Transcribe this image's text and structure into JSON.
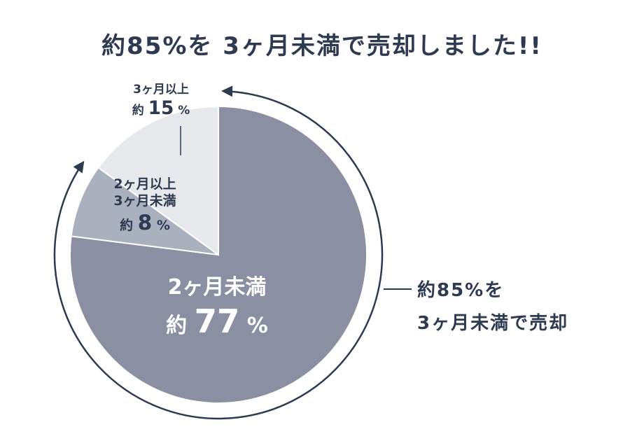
{
  "title": "約85%を 3ヶ月未満で売却しました!!",
  "chart_data": {
    "type": "pie",
    "slices": [
      {
        "name": "2ヶ月未満",
        "value": 77,
        "color": "#8a90a1",
        "label_line1": "2ヶ月未満",
        "label_prefix": "約",
        "label_value": "77",
        "label_unit": "%"
      },
      {
        "name": "2ヶ月以上3ヶ月未満",
        "value": 8,
        "color": "#a9b0be",
        "label_line1": "2ヶ月以上",
        "label_line2": "3ヶ月未満",
        "label_prefix": "約",
        "label_value": "8",
        "label_unit": "%"
      },
      {
        "name": "3ヶ月以上",
        "value": 15,
        "color": "#e6e8ec",
        "label_line1": "3ヶ月以上",
        "label_prefix": "約",
        "label_value": "15",
        "label_unit": "%"
      }
    ],
    "annotation_line1": "約85%を",
    "annotation_line2": "3ヶ月未満で売却",
    "arrow_color": "#2e3a50"
  }
}
